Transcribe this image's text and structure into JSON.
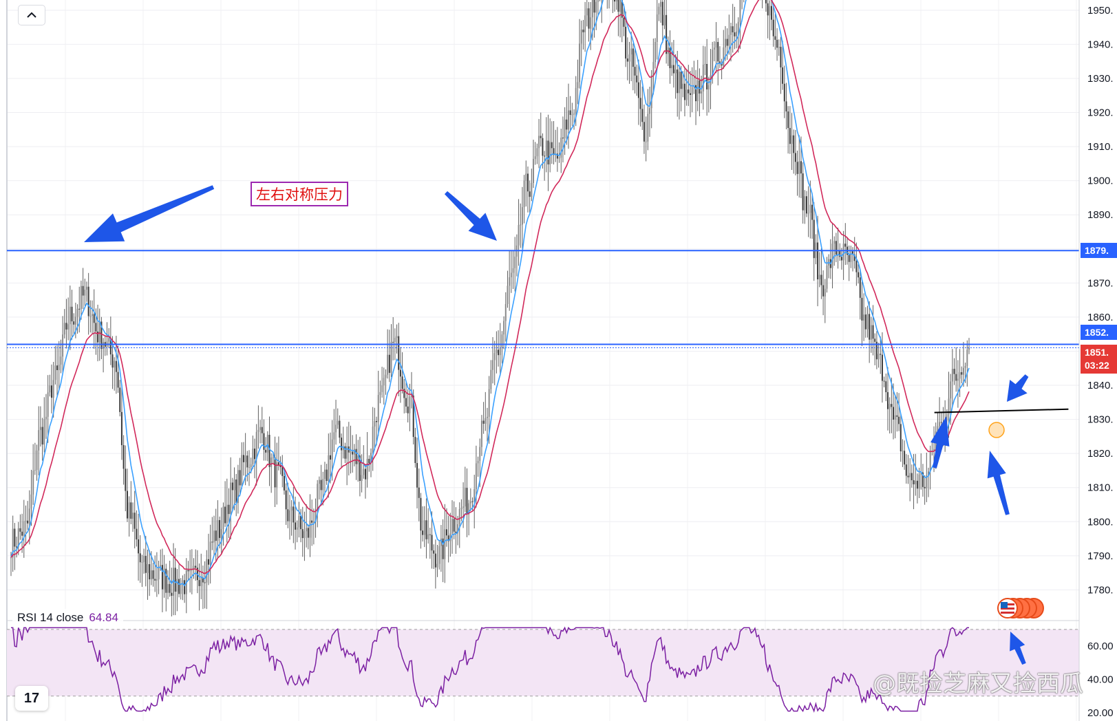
{
  "chart_data": {
    "type": "candlestick",
    "title": "",
    "xlabel": "",
    "ylabel": "",
    "price_axis": {
      "ylim": [
        1771,
        1953
      ],
      "ticks": [
        1780,
        1790,
        1800,
        1810,
        1820,
        1830,
        1840,
        1850,
        1860,
        1870,
        1880,
        1890,
        1900,
        1910,
        1920,
        1930,
        1940,
        1950
      ],
      "tick_labels": [
        "1780.",
        "1790.",
        "1800.",
        "1810.",
        "1820.",
        "1830.",
        "1840.",
        "1850.",
        "1860.",
        "1870.",
        "1880.",
        "1890.",
        "1900.",
        "1910.",
        "1920.",
        "1930.",
        "1940.",
        "1950."
      ]
    },
    "anchor_close": [
      1794,
      1798,
      1826,
      1842,
      1860,
      1866,
      1855,
      1848,
      1802,
      1786,
      1784,
      1782,
      1782,
      1786,
      1797,
      1808,
      1818,
      1826,
      1814,
      1801,
      1796,
      1808,
      1826,
      1820,
      1815,
      1835,
      1852,
      1836,
      1796,
      1790,
      1800,
      1806,
      1826,
      1850,
      1872,
      1898,
      1910,
      1906,
      1920,
      1947,
      1958,
      1956,
      1935,
      1915,
      1950,
      1930,
      1923,
      1930,
      1937,
      1946,
      1962,
      1957,
      1940,
      1912,
      1892,
      1870,
      1880,
      1876,
      1858,
      1846,
      1828,
      1812,
      1812,
      1828,
      1842,
      1851
    ],
    "horizontal_lines": [
      {
        "price": 1879.5,
        "color": "#2962ff"
      },
      {
        "price": 1852.0,
        "color": "#2962ff"
      },
      {
        "price": 1851.0,
        "color": "#2962ff",
        "style": "dotted"
      }
    ],
    "support_line": {
      "x0": 0.865,
      "x1": 0.99,
      "y0": 1832,
      "y1": 1833,
      "color": "#000000"
    },
    "price_tags": [
      {
        "label": "1879.",
        "price": 1879.5,
        "color": "#2962ff"
      },
      {
        "label": "1852.",
        "price": 1855.5,
        "color": "#2962ff"
      },
      {
        "label": "1851.",
        "sub": "03:22",
        "price": 1847.5,
        "color": "#e53935"
      }
    ],
    "series": [
      {
        "name": "",
        "kind": "ma_fast",
        "color": "#3aa0ff"
      },
      {
        "name": "",
        "kind": "ma_slow",
        "color": "#d1285a"
      }
    ],
    "rsi": {
      "label": "RSI 14 close",
      "value": "64.84",
      "ylim": [
        20,
        72
      ],
      "ticks": [
        20,
        40,
        60
      ],
      "tick_labels": [
        "20.00",
        "40.00",
        "60.00"
      ],
      "bands": [
        30,
        70
      ],
      "color": "#7b1fa2"
    },
    "annotation": "左右对称压力"
  },
  "ui": {
    "watermark": "@既捡芝麻又捡西瓜",
    "logo": "17",
    "collapse_icon": "chevron-up-icon",
    "colors": {
      "accent": "#2962ff",
      "arrow": "#1e56e8",
      "rsi_band": "#f3e5f5",
      "candle": "#4d4d4d"
    }
  }
}
